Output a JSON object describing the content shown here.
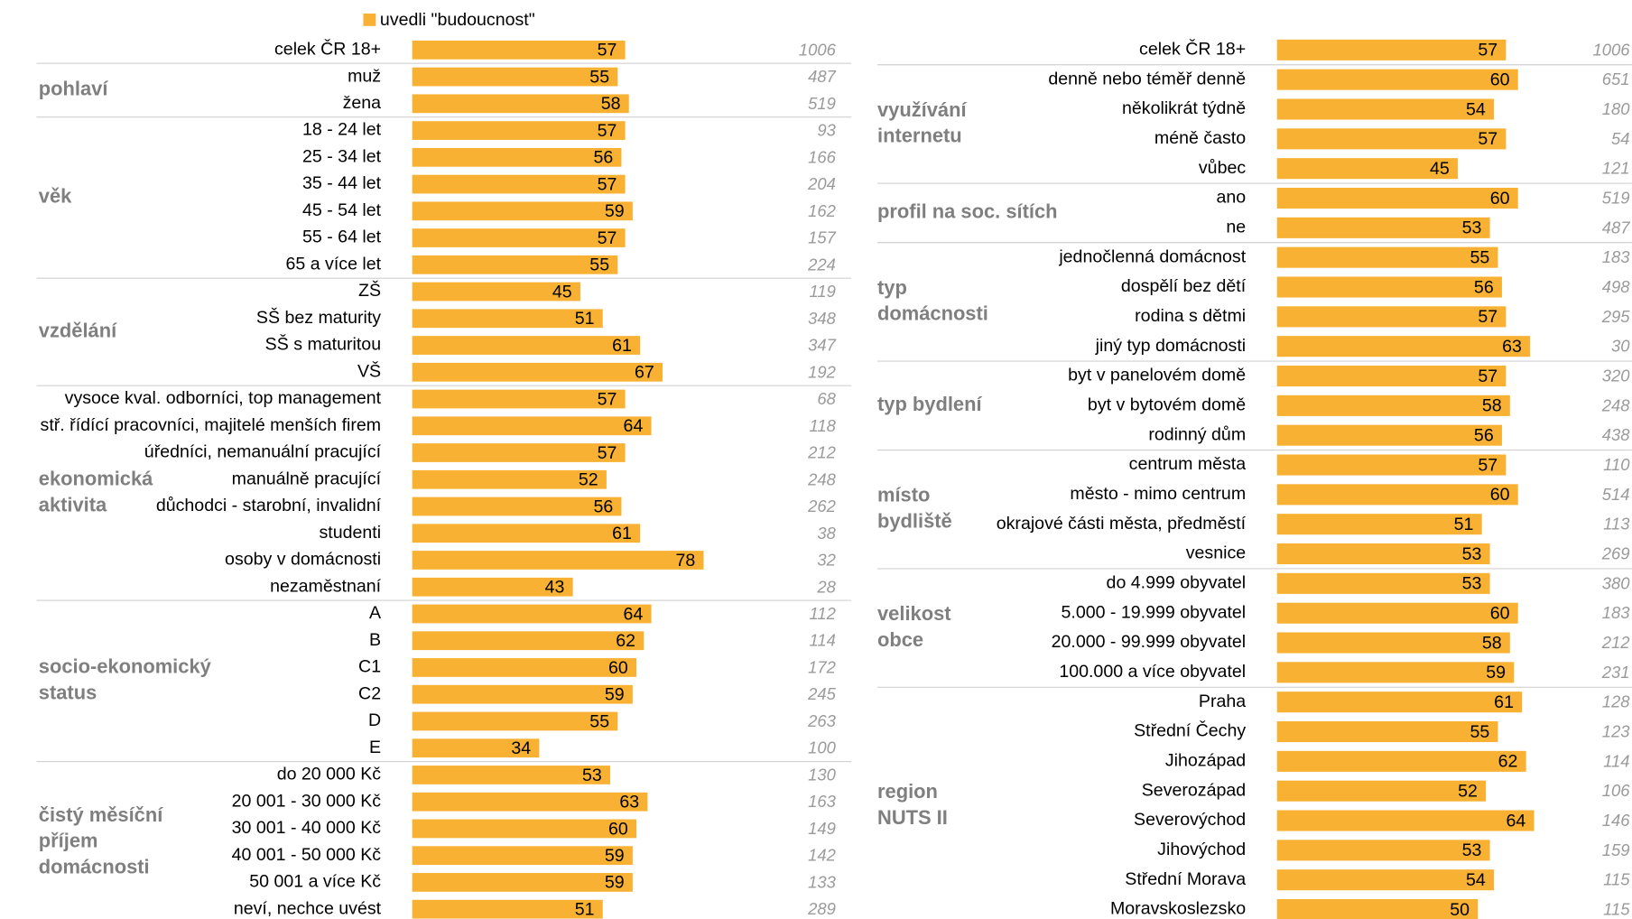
{
  "chart_data": [
    {
      "type": "bar",
      "orientation": "horizontal",
      "legend": "uvedli \"budoucnost\"",
      "color": "#f8b133",
      "xlim": [
        0,
        100
      ],
      "groups": [
        {
          "categories": [
            "celek ČR 18+"
          ],
          "values": [
            57
          ],
          "n": [
            1006
          ]
        },
        {
          "label": [
            "pohlaví"
          ],
          "categories": [
            "muž",
            "žena"
          ],
          "values": [
            55,
            58
          ],
          "n": [
            487,
            519
          ]
        },
        {
          "label": [
            "věk"
          ],
          "categories": [
            "18 - 24 let",
            "25 - 34 let",
            "35 - 44 let",
            "45 - 54 let",
            "55 - 64 let",
            "65 a více let"
          ],
          "values": [
            57,
            56,
            57,
            59,
            57,
            55
          ],
          "n": [
            93,
            166,
            204,
            162,
            157,
            224
          ]
        },
        {
          "label": [
            "vzdělání"
          ],
          "categories": [
            "ZŠ",
            "SŠ bez maturity",
            "SŠ s maturitou",
            "VŠ"
          ],
          "values": [
            45,
            51,
            61,
            67
          ],
          "n": [
            119,
            348,
            347,
            192
          ]
        },
        {
          "label": [
            "ekonomická",
            "aktivita"
          ],
          "categories": [
            "vysoce kval. odborníci, top management",
            "stř. řídící pracovníci, majitelé menších firem",
            "úředníci, nemanuální pracující",
            "manuálně pracující",
            "důchodci  - starobní, invalidní",
            "studenti",
            "osoby v domácnosti",
            "nezaměstnaní"
          ],
          "values": [
            57,
            64,
            57,
            52,
            56,
            61,
            78,
            43
          ],
          "n": [
            68,
            118,
            212,
            248,
            262,
            38,
            32,
            28
          ]
        },
        {
          "label": [
            "socio-ekonomický",
            "status"
          ],
          "categories": [
            "A",
            "B",
            "C1",
            "C2",
            "D",
            "E"
          ],
          "values": [
            64,
            62,
            60,
            59,
            55,
            34
          ],
          "n": [
            112,
            114,
            172,
            245,
            263,
            100
          ]
        },
        {
          "label": [
            "čistý měsíční",
            "příjem",
            "domácnosti"
          ],
          "categories": [
            "do 20 000 Kč",
            "20 001 - 30 000 Kč",
            "30 001 - 40 000 Kč",
            "40 001 - 50 000 Kč",
            "50 001 a více Kč",
            "neví, nechce uvést"
          ],
          "values": [
            53,
            63,
            60,
            59,
            59,
            51
          ],
          "n": [
            130,
            163,
            149,
            142,
            133,
            289
          ]
        }
      ]
    },
    {
      "type": "bar",
      "orientation": "horizontal",
      "color": "#f8b133",
      "xlim": [
        0,
        100
      ],
      "groups": [
        {
          "categories": [
            "celek ČR 18+"
          ],
          "values": [
            57
          ],
          "n": [
            1006
          ]
        },
        {
          "label": [
            "využívání",
            "internetu"
          ],
          "categories": [
            "denně nebo téměř denně",
            "několikrát týdně",
            "méně často",
            "vůbec"
          ],
          "values": [
            60,
            54,
            57,
            45
          ],
          "n": [
            651,
            180,
            54,
            121
          ]
        },
        {
          "label": [
            "profil na soc. sítích"
          ],
          "categories": [
            "ano",
            "ne"
          ],
          "values": [
            60,
            53
          ],
          "n": [
            519,
            487
          ]
        },
        {
          "label": [
            "typ",
            "domácnosti"
          ],
          "categories": [
            "jednočlenná domácnost",
            "dospělí bez dětí",
            "rodina s dětmi",
            "jiný typ domácnosti"
          ],
          "values": [
            55,
            56,
            57,
            63
          ],
          "n": [
            183,
            498,
            295,
            30
          ]
        },
        {
          "label": [
            "typ bydlení"
          ],
          "categories": [
            "byt v panelovém domě",
            "byt v bytovém domě",
            "rodinný dům"
          ],
          "values": [
            57,
            58,
            56
          ],
          "n": [
            320,
            248,
            438
          ]
        },
        {
          "label": [
            "místo",
            "bydliště"
          ],
          "categories": [
            "centrum města",
            "město - mimo centrum",
            "okrajové části města, předměstí",
            "vesnice"
          ],
          "values": [
            57,
            60,
            51,
            53
          ],
          "n": [
            110,
            514,
            113,
            269
          ]
        },
        {
          "label": [
            "velikost",
            "obce"
          ],
          "categories": [
            "do 4.999 obyvatel",
            "5.000 - 19.999 obyvatel",
            "20.000 - 99.999 obyvatel",
            "100.000 a více obyvatel"
          ],
          "values": [
            53,
            60,
            58,
            59
          ],
          "n": [
            380,
            183,
            212,
            231
          ]
        },
        {
          "label": [
            "region",
            "NUTS II"
          ],
          "categories": [
            "Praha",
            "Střední Čechy",
            "Jihozápad",
            "Severozápad",
            "Severovýchod",
            "Jihovýchod",
            "Střední Morava",
            "Moravskoslezsko"
          ],
          "values": [
            61,
            55,
            62,
            52,
            64,
            53,
            54,
            50
          ],
          "n": [
            128,
            123,
            114,
            106,
            146,
            159,
            115,
            115
          ]
        }
      ]
    }
  ]
}
